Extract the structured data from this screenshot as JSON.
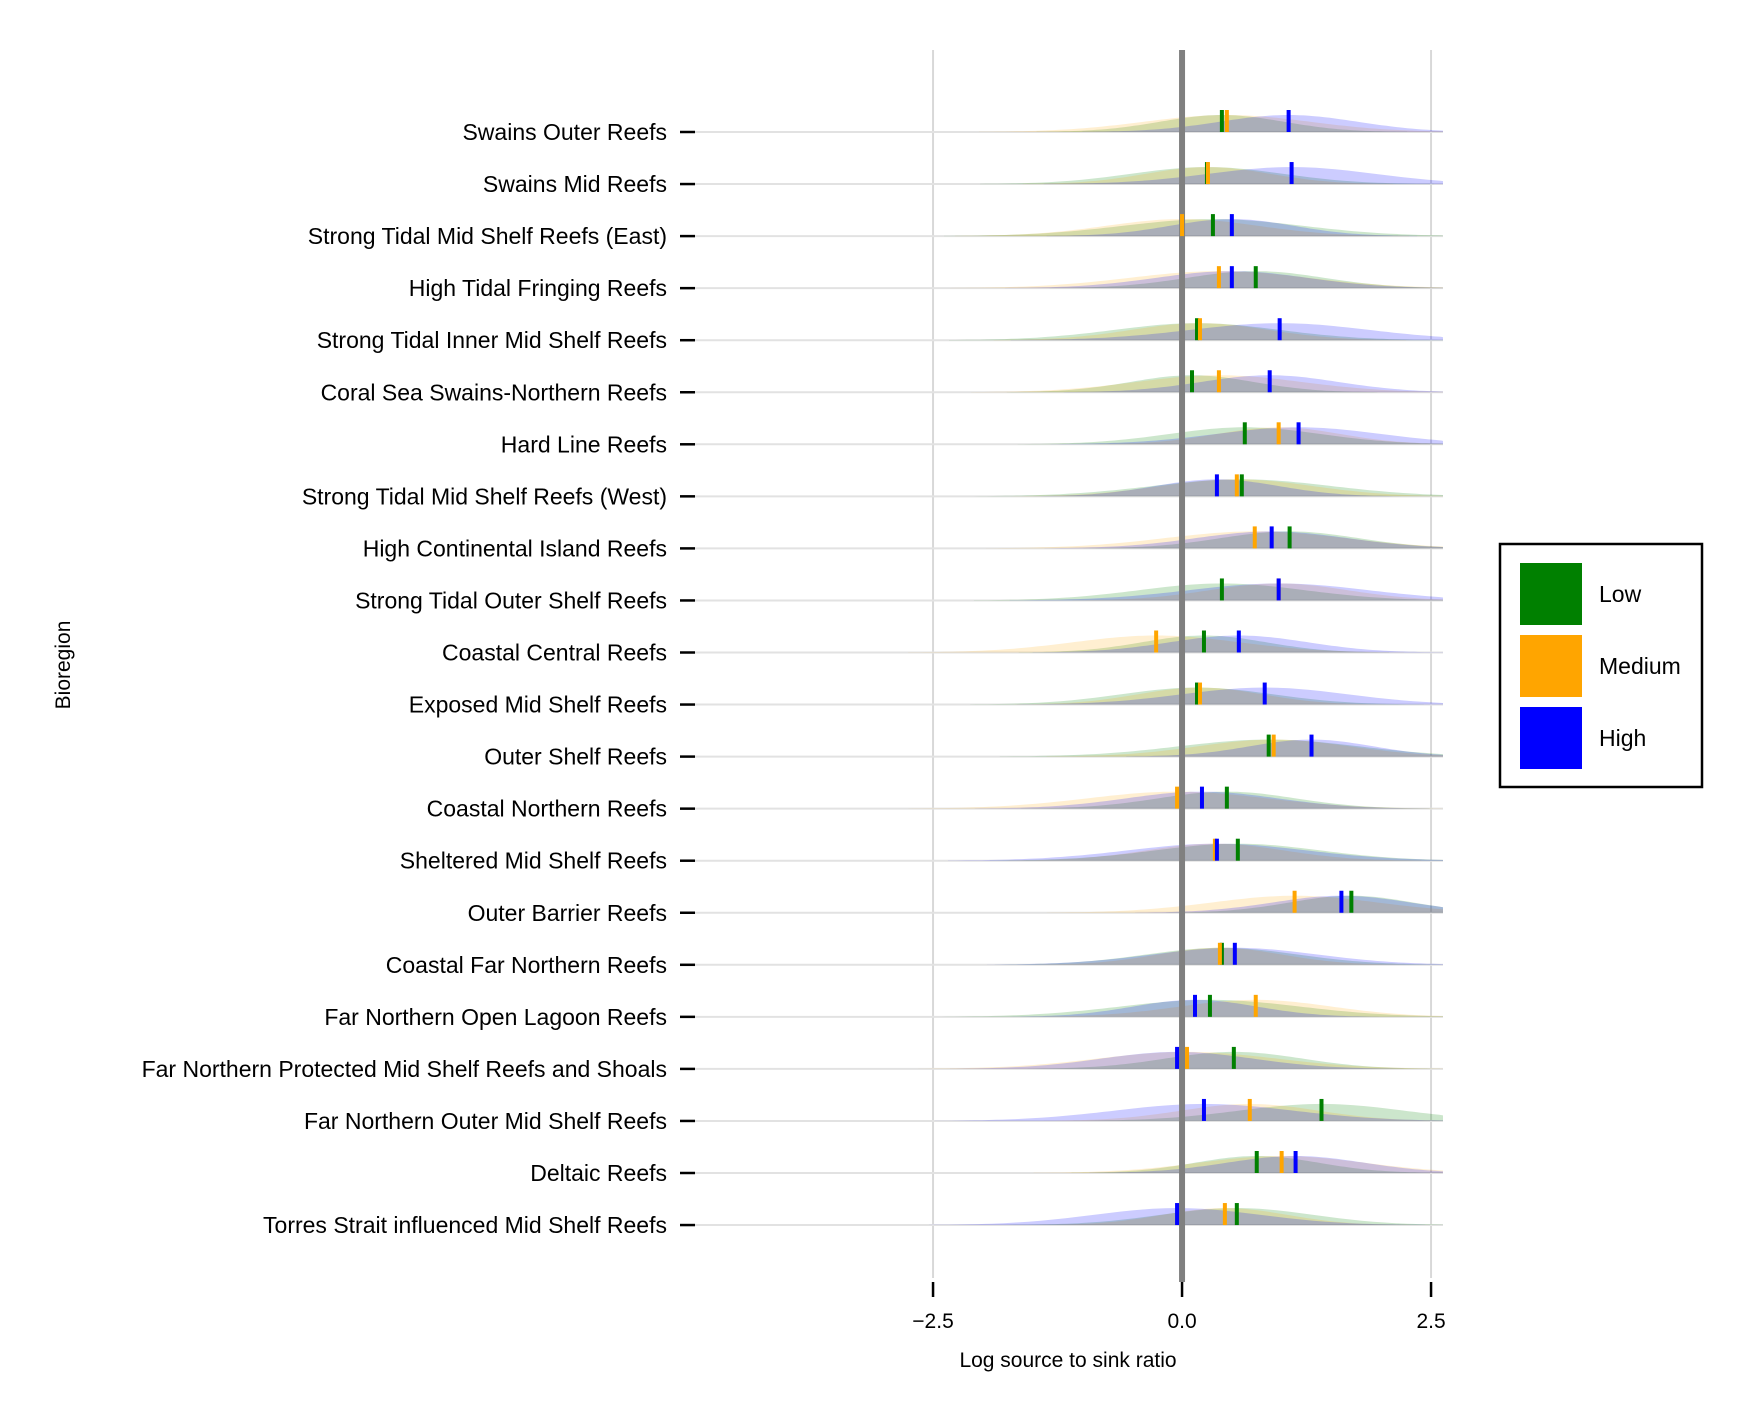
{
  "chart_data": {
    "type": "ridgeline",
    "xlabel": "Log source to sink ratio",
    "ylabel": "Bioregion",
    "xlim": [
      -4.9,
      2.62
    ],
    "x_ticks": [
      -2.5,
      0.0,
      2.5
    ],
    "x_tick_labels": [
      "−2.5",
      "0.0",
      "2.5"
    ],
    "grid": true,
    "reference_line_x": 0,
    "legend_position": "right",
    "series": [
      {
        "name": "Low",
        "color": "#008000"
      },
      {
        "name": "Medium",
        "color": "#FFA500"
      },
      {
        "name": "High",
        "color": "#0000FF"
      }
    ],
    "categories": [
      {
        "label": "Swains Outer Reefs",
        "medians": [
          0.4,
          0.45,
          1.07
        ]
      },
      {
        "label": "Swains Mid Reefs",
        "medians": [
          0.25,
          0.26,
          1.1
        ]
      },
      {
        "label": "Strong Tidal Mid Shelf Reefs (East)",
        "medians": [
          0.31,
          0.0,
          0.5
        ]
      },
      {
        "label": "High Tidal Fringing Reefs",
        "medians": [
          0.74,
          0.37,
          0.5
        ]
      },
      {
        "label": "Strong Tidal Inner Mid Shelf Reefs",
        "medians": [
          0.15,
          0.18,
          0.98
        ]
      },
      {
        "label": "Coral Sea Swains-Northern Reefs",
        "medians": [
          0.1,
          0.37,
          0.88
        ]
      },
      {
        "label": "Hard Line Reefs",
        "medians": [
          0.63,
          0.97,
          1.17
        ]
      },
      {
        "label": "Strong Tidal Mid Shelf Reefs (West)",
        "medians": [
          0.6,
          0.55,
          0.35
        ]
      },
      {
        "label": "High Continental Island Reefs",
        "medians": [
          1.08,
          0.73,
          0.9
        ]
      },
      {
        "label": "Strong Tidal Outer Shelf Reefs",
        "medians": [
          0.4,
          0.97,
          0.97
        ]
      },
      {
        "label": "Coastal Central Reefs",
        "medians": [
          0.22,
          -0.26,
          0.57
        ]
      },
      {
        "label": "Exposed Mid Shelf Reefs",
        "medians": [
          0.15,
          0.18,
          0.83
        ]
      },
      {
        "label": "Outer Shelf Reefs",
        "medians": [
          0.87,
          0.92,
          1.3
        ]
      },
      {
        "label": "Coastal Northern Reefs",
        "medians": [
          0.45,
          -0.05,
          0.2
        ]
      },
      {
        "label": "Sheltered Mid Shelf Reefs",
        "medians": [
          0.56,
          0.33,
          0.35
        ]
      },
      {
        "label": "Outer Barrier Reefs",
        "medians": [
          1.7,
          1.13,
          1.6
        ]
      },
      {
        "label": "Coastal Far Northern Reefs",
        "medians": [
          0.4,
          0.38,
          0.53
        ]
      },
      {
        "label": "Far Northern Open Lagoon Reefs",
        "medians": [
          0.28,
          0.74,
          0.13
        ]
      },
      {
        "label": "Far Northern Protected Mid Shelf Reefs and Shoals",
        "medians": [
          0.52,
          0.05,
          -0.05
        ]
      },
      {
        "label": "Far Northern Outer Mid Shelf Reefs",
        "medians": [
          1.4,
          0.68,
          0.22
        ]
      },
      {
        "label": "Deltaic Reefs",
        "medians": [
          0.75,
          1.0,
          1.14
        ]
      },
      {
        "label": "Torres Strait influenced Mid Shelf Reefs",
        "medians": [
          0.55,
          0.43,
          -0.05
        ]
      }
    ]
  }
}
